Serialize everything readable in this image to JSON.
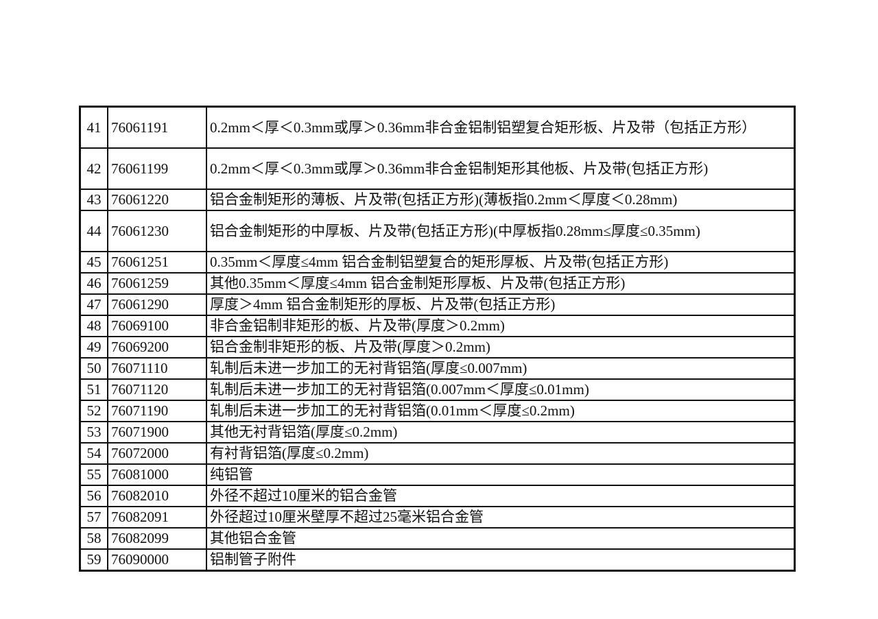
{
  "rows": [
    {
      "no": "41",
      "code": "76061191",
      "desc": "0.2mm＜厚＜0.3mm或厚＞0.36mm非合金铝制铝塑复合矩形板、片及带（包括正方形）",
      "tall": true
    },
    {
      "no": "42",
      "code": "76061199",
      "desc": "0.2mm＜厚＜0.3mm或厚＞0.36mm非合金铝制矩形其他板、片及带(包括正方形)",
      "tall": true
    },
    {
      "no": "43",
      "code": "76061220",
      "desc": "铝合金制矩形的薄板、片及带(包括正方形)(薄板指0.2mm＜厚度＜0.28mm)",
      "tall": false
    },
    {
      "no": "44",
      "code": "76061230",
      "desc": "铝合金制矩形的中厚板、片及带(包括正方形)(中厚板指0.28mm≤厚度≤0.35mm)",
      "tall": true
    },
    {
      "no": "45",
      "code": "76061251",
      "desc": "0.35mm＜厚度≤4mm 铝合金制铝塑复合的矩形厚板、片及带(包括正方形)",
      "tall": false
    },
    {
      "no": "46",
      "code": "76061259",
      "desc": "其他0.35mm＜厚度≤4mm 铝合金制矩形厚板、片及带(包括正方形)",
      "tall": false
    },
    {
      "no": "47",
      "code": "76061290",
      "desc": "厚度＞4mm 铝合金制矩形的厚板、片及带(包括正方形)",
      "tall": false
    },
    {
      "no": "48",
      "code": "76069100",
      "desc": "非合金铝制非矩形的板、片及带(厚度＞0.2mm)",
      "tall": false
    },
    {
      "no": "49",
      "code": "76069200",
      "desc": "铝合金制非矩形的板、片及带(厚度＞0.2mm)",
      "tall": false
    },
    {
      "no": "50",
      "code": "76071110",
      "desc": "轧制后未进一步加工的无衬背铝箔(厚度≤0.007mm)",
      "tall": false
    },
    {
      "no": "51",
      "code": "76071120",
      "desc": "轧制后未进一步加工的无衬背铝箔(0.007mm＜厚度≤0.01mm)",
      "tall": false
    },
    {
      "no": "52",
      "code": "76071190",
      "desc": "轧制后未进一步加工的无衬背铝箔(0.01mm＜厚度≤0.2mm)",
      "tall": false
    },
    {
      "no": "53",
      "code": "76071900",
      "desc": "其他无衬背铝箔(厚度≤0.2mm)",
      "tall": false
    },
    {
      "no": "54",
      "code": "76072000",
      "desc": "有衬背铝箔(厚度≤0.2mm)",
      "tall": false
    },
    {
      "no": "55",
      "code": "76081000",
      "desc": "纯铝管",
      "tall": false
    },
    {
      "no": "56",
      "code": "76082010",
      "desc": "外径不超过10厘米的铝合金管",
      "tall": false
    },
    {
      "no": "57",
      "code": "76082091",
      "desc": "外径超过10厘米壁厚不超过25毫米铝合金管",
      "tall": false
    },
    {
      "no": "58",
      "code": "76082099",
      "desc": "其他铝合金管",
      "tall": false
    },
    {
      "no": "59",
      "code": "76090000",
      "desc": "铝制管子附件",
      "tall": false
    }
  ]
}
